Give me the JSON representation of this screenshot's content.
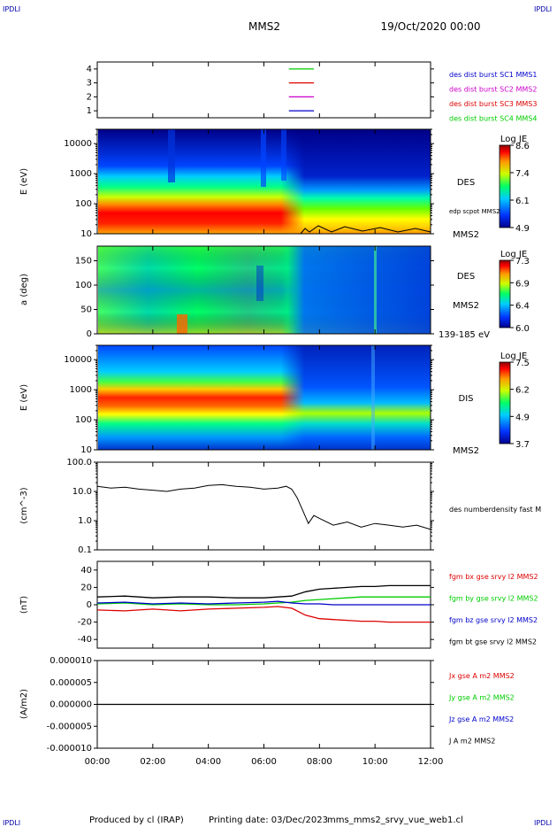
{
  "header": {
    "logo_left": "IPDLI",
    "logo_right": "IPDLI",
    "spacecraft": "MMS2",
    "date": "19/Oct/2020 00:00"
  },
  "footer": {
    "produced_by": "Produced by cl (IRAP)",
    "printing_date": "Printing date: 03/Dec/2023",
    "file_name": "mms_mms2_srvy_vue_web1.cl",
    "logo_left": "IPDLI",
    "logo_right": "IPDLI"
  },
  "time_axis": {
    "ticks": [
      "00:00",
      "02:00",
      "04:00",
      "06:00",
      "08:00",
      "10:00",
      "12:00"
    ]
  },
  "chart_data": [
    {
      "type": "line",
      "panel": "availability",
      "yticks": [
        "1",
        "2",
        "3",
        "4"
      ],
      "ylim": [
        0.5,
        4.5
      ],
      "series": [
        {
          "name": "des dist burst SC1 MMS1",
          "color": "#0000cc",
          "y": 1,
          "x_range_h": [
            6.9,
            7.8
          ]
        },
        {
          "name": "des dist burst SC2 MMS2",
          "color": "#cc00cc",
          "y": 2,
          "x_range_h": [
            6.9,
            7.8
          ]
        },
        {
          "name": "des dist burst SC3 MMS3",
          "color": "#dd0000",
          "y": 3,
          "x_range_h": [
            6.9,
            7.8
          ]
        },
        {
          "name": "des dist burst SC4 MMS4",
          "color": "#00cc00",
          "y": 4,
          "x_range_h": [
            6.9,
            7.8
          ]
        }
      ]
    },
    {
      "type": "heatmap",
      "panel": "des-energy",
      "ylabel": "E (eV)",
      "yticks": [
        "10",
        "100",
        "1000",
        "10000"
      ],
      "ylim_log": [
        10,
        30000
      ],
      "instrument": "DES",
      "spacecraft": "MMS2",
      "overlay_label": "edp scpot MMS2",
      "colorbar": {
        "title": "Log JE",
        "ticks": [
          "8.6",
          "7.4",
          "6.1",
          "4.9"
        ]
      }
    },
    {
      "type": "heatmap",
      "panel": "des-pitch",
      "ylabel": "a (deg)",
      "yticks": [
        "0",
        "50",
        "100",
        "150"
      ],
      "ylim": [
        0,
        180
      ],
      "instrument": "DES",
      "spacecraft": "MMS2",
      "energy_range": "139-185 eV",
      "colorbar": {
        "title": "Log JE",
        "ticks": [
          "7.3",
          "6.9",
          "6.4",
          "6.0"
        ]
      }
    },
    {
      "type": "heatmap",
      "panel": "dis-energy",
      "ylabel": "E (eV)",
      "yticks": [
        "10",
        "100",
        "1000",
        "10000"
      ],
      "ylim_log": [
        10,
        30000
      ],
      "instrument": "DIS",
      "spacecraft": "MMS2",
      "colorbar": {
        "title": "Log JE",
        "ticks": [
          "7.5",
          "6.2",
          "4.9",
          "3.7"
        ]
      }
    },
    {
      "type": "line",
      "panel": "density",
      "ylabel": "(cm^-3)",
      "yticks": [
        "0.1",
        "1.0",
        "10.0",
        "100.0"
      ],
      "ylim_log": [
        0.1,
        100
      ],
      "series": [
        {
          "name": "des numberdensity fast M",
          "color": "#000000",
          "x": [
            0,
            0.5,
            1,
            1.5,
            2,
            2.5,
            3,
            3.5,
            4,
            4.5,
            5,
            5.5,
            6,
            6.5,
            6.8,
            7,
            7.2,
            7.4,
            7.6,
            7.8,
            8,
            8.5,
            9,
            9.5,
            10,
            10.5,
            11,
            11.5,
            12
          ],
          "y": [
            15,
            13,
            14,
            12,
            11,
            10,
            12,
            13,
            16,
            17,
            15,
            14,
            12,
            13,
            15,
            12,
            6,
            2.2,
            0.8,
            1.5,
            1.2,
            0.7,
            0.9,
            0.6,
            0.8,
            0.7,
            0.6,
            0.7,
            0.5
          ]
        }
      ]
    },
    {
      "type": "line",
      "panel": "magnetic-field",
      "ylabel": "(nT)",
      "yticks": [
        "-40",
        "-20",
        "0",
        "20",
        "40"
      ],
      "ylim": [
        -50,
        50
      ],
      "series": [
        {
          "name": "fgm bx gse srvy l2 MMS2",
          "color": "#dd0000",
          "x": [
            0,
            1,
            2,
            3,
            4,
            5,
            6,
            6.5,
            7,
            7.5,
            8,
            8.5,
            9,
            9.5,
            10,
            10.5,
            11,
            11.5,
            12
          ],
          "y": [
            -6,
            -7,
            -5,
            -7,
            -5,
            -4,
            -3,
            -2,
            -4,
            -12,
            -16,
            -17,
            -18,
            -19,
            -19,
            -20,
            -20,
            -20,
            -20
          ]
        },
        {
          "name": "fgm by gse srvy l2 MMS2",
          "color": "#00cc00",
          "x": [
            0,
            1,
            2,
            3,
            4,
            5,
            6,
            6.5,
            7,
            7.5,
            8,
            8.5,
            9,
            9.5,
            10,
            10.5,
            11,
            11.5,
            12
          ],
          "y": [
            1,
            2,
            0,
            1,
            0,
            0,
            1,
            2,
            3,
            5,
            6,
            7,
            8,
            9,
            9,
            9,
            9,
            9,
            9
          ]
        },
        {
          "name": "fgm bz gse srvy l2 MMS2",
          "color": "#0000cc",
          "x": [
            0,
            1,
            2,
            3,
            4,
            5,
            6,
            6.5,
            7,
            7.5,
            8,
            8.5,
            9,
            9.5,
            10,
            10.5,
            11,
            11.5,
            12
          ],
          "y": [
            2,
            3,
            1,
            2,
            1,
            2,
            3,
            4,
            2,
            1,
            1,
            0,
            0,
            0,
            0,
            0,
            0,
            0,
            0
          ]
        },
        {
          "name": "fgm bt gse srvy l2 MMS2",
          "color": "#000000",
          "x": [
            0,
            1,
            2,
            3,
            4,
            5,
            6,
            6.5,
            7,
            7.5,
            8,
            8.5,
            9,
            9.5,
            10,
            10.5,
            11,
            11.5,
            12
          ],
          "y": [
            9,
            10,
            8,
            9,
            9,
            8,
            8,
            9,
            10,
            15,
            18,
            19,
            20,
            21,
            21,
            22,
            22,
            22,
            22
          ]
        }
      ]
    },
    {
      "type": "line",
      "panel": "current-density",
      "ylabel": "(A/m2)",
      "yticks": [
        "-0.000010",
        "-0.000005",
        "0.000000",
        "0.000005",
        "0.000010"
      ],
      "ylim": [
        -1e-05,
        1e-05
      ],
      "series": [
        {
          "name": "Jx gse A m2 MMS2",
          "color": "#dd0000"
        },
        {
          "name": "Jy gse A m2 MMS2",
          "color": "#00cc00"
        },
        {
          "name": "Jz gse A m2 MMS2",
          "color": "#0000cc"
        },
        {
          "name": "J A m2 MMS2",
          "color": "#000000",
          "x": [
            0,
            12
          ],
          "y": [
            0,
            0
          ]
        }
      ]
    }
  ]
}
